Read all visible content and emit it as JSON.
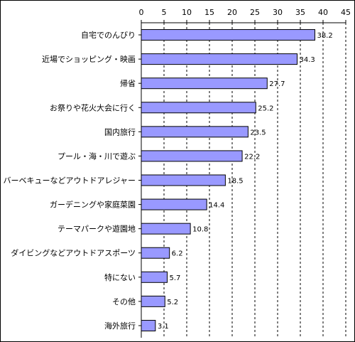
{
  "chart_data": {
    "type": "bar",
    "orientation": "horizontal",
    "title": "",
    "xlabel": "",
    "ylabel": "",
    "xlim": [
      0,
      45
    ],
    "xticks": [
      0,
      5,
      10,
      15,
      20,
      25,
      30,
      35,
      40,
      45
    ],
    "grid": "vertical dashed",
    "bar_color": "#9999ff",
    "categories": [
      "自宅でのんびり",
      "近場でショッピング・映画",
      "帰省",
      "お祭りや花火大会に行く",
      "国内旅行",
      "プール・海・川で遊ぶ",
      "バーベキューなどアウトドアレジャー",
      "ガーデニングや家庭菜園",
      "テーマパークや遊園地",
      "ダイビングなどアウトドアスポーツ",
      "特にない",
      "その他",
      "海外旅行"
    ],
    "values": [
      38.2,
      34.3,
      27.7,
      25.2,
      23.5,
      22.2,
      18.5,
      14.4,
      10.8,
      6.2,
      5.7,
      5.2,
      3.1
    ]
  }
}
